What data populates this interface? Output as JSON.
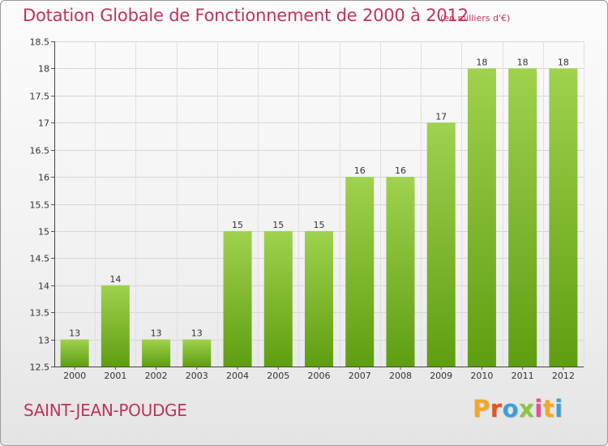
{
  "header": {
    "title": "Dotation Globale de Fonctionnement de 2000 à 2012",
    "unit": "(en milliers d'€)"
  },
  "footer": {
    "commune": "SAINT-JEAN-POUDGE",
    "logo_letters": [
      "P",
      "r",
      "o",
      "x",
      "i",
      "t",
      "i"
    ],
    "logo_colors": [
      "#f5a623",
      "#e8531f",
      "#3aa0d8",
      "#8cc63f",
      "#e84c8b",
      "#f5a623",
      "#3aa0d8"
    ]
  },
  "chart_data": {
    "type": "bar",
    "categories": [
      "2000",
      "2001",
      "2002",
      "2003",
      "2004",
      "2005",
      "2006",
      "2007",
      "2008",
      "2009",
      "2010",
      "2011",
      "2012"
    ],
    "values": [
      13,
      14,
      13,
      13,
      15,
      15,
      15,
      16,
      16,
      17,
      18,
      18,
      18
    ],
    "data_labels": [
      "13",
      "14",
      "13",
      "13",
      "15",
      "15",
      "15",
      "16",
      "16",
      "17",
      "18",
      "18",
      "18"
    ],
    "ylim": [
      12.5,
      18.5
    ],
    "yticks": [
      12.5,
      13,
      13.5,
      14,
      14.5,
      15,
      15.5,
      16,
      16.5,
      17,
      17.5,
      18,
      18.5
    ],
    "ytick_labels": [
      "12.5",
      "13",
      "13.5",
      "14",
      "14.5",
      "15",
      "15.5",
      "16",
      "16.5",
      "17",
      "17.5",
      "18",
      "18.5"
    ],
    "grid": true,
    "bar_color_top": "#9fd24e",
    "bar_color_bottom": "#5f9e10"
  }
}
